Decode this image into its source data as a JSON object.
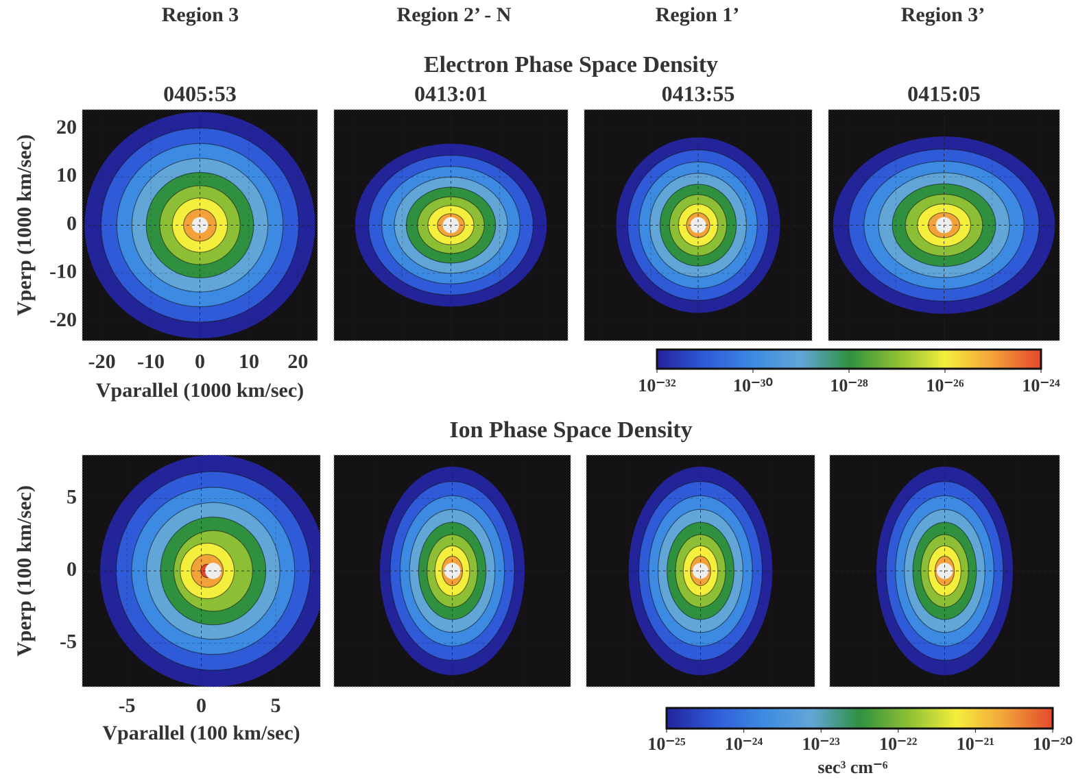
{
  "column_headers": [
    "Region 3",
    "Region 2’ - N",
    "Region 1’",
    "Region 3’"
  ],
  "chart_data": [
    {
      "type": "contour",
      "title": "Electron Phase Space Density",
      "panel_titles": [
        "0405:53",
        "0413:01",
        "0413:55",
        "0415:05"
      ],
      "x_label": "Vparallel  (1000 km/sec)",
      "y_label": "Vperp (1000 km/sec)",
      "xlim": [
        -24,
        24
      ],
      "ylim": [
        -24,
        24
      ],
      "xticks": [
        -20,
        -10,
        0,
        10,
        20
      ],
      "yticks": [
        -20,
        -10,
        0,
        10,
        20
      ],
      "colorbar": {
        "scale": "log",
        "lim": [
          1e-32,
          1e-24
        ],
        "ticks": [
          {
            "value": 1e-32,
            "label": "10⁻³²"
          },
          {
            "value": 1e-30,
            "label": "10⁻³⁰"
          },
          {
            "value": 1e-28,
            "label": "10⁻²⁸"
          },
          {
            "value": 1e-26,
            "label": "10⁻²⁶"
          },
          {
            "value": 1e-24,
            "label": "10⁻²⁴"
          }
        ],
        "colors": [
          "#23239a",
          "#2f5ad8",
          "#3c8ae2",
          "#62a6d8",
          "#2f9140",
          "#8cbf35",
          "#f4ee3c",
          "#f3a23a",
          "#e4482c"
        ]
      }
    },
    {
      "type": "contour",
      "title": "Ion Phase Space Density",
      "x_label": "Vparallel  (100 km/sec)",
      "y_label": "Vperp (100 km/sec)",
      "xlim": [
        -8,
        8
      ],
      "ylim": [
        -8,
        8
      ],
      "xticks": [
        -5,
        0,
        5
      ],
      "yticks": [
        -5,
        0,
        5
      ],
      "colorbar": {
        "scale": "log",
        "lim": [
          1e-25,
          1e-20
        ],
        "label": "sec³ cm⁻⁶",
        "ticks": [
          {
            "value": 1e-25,
            "label": "10⁻²⁵"
          },
          {
            "value": 1e-24,
            "label": "10⁻²⁴"
          },
          {
            "value": 1e-23,
            "label": "10⁻²³"
          },
          {
            "value": 1e-22,
            "label": "10⁻²²"
          },
          {
            "value": 1e-21,
            "label": "10⁻²¹"
          },
          {
            "value": 1e-20,
            "label": "10⁻²⁰"
          }
        ],
        "colors": [
          "#23239a",
          "#2f5ad8",
          "#3c8ae2",
          "#62a6d8",
          "#2f9140",
          "#8cbf35",
          "#f4ee3c",
          "#f3a23a",
          "#e4482c"
        ]
      }
    }
  ]
}
